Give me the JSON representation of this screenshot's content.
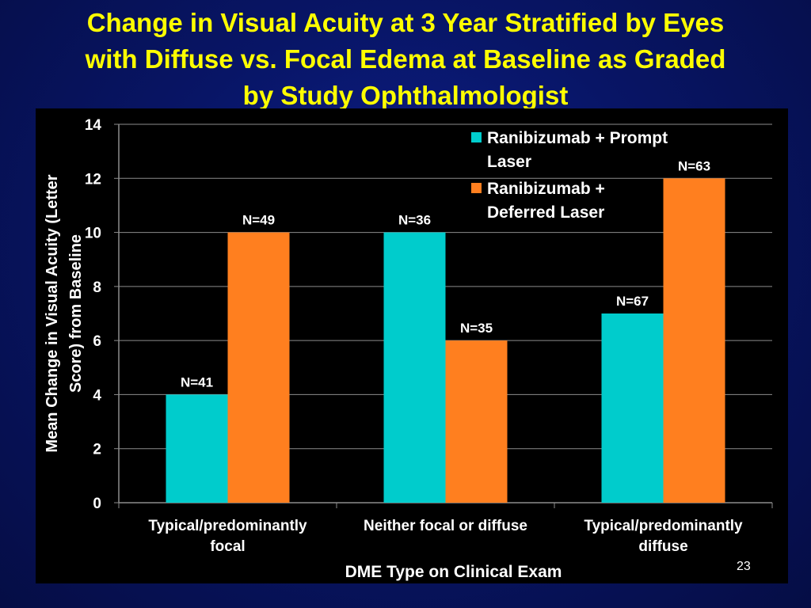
{
  "slide": {
    "title_lines": [
      "Change in Visual Acuity at 3 Year Stratified by Eyes",
      "with Diffuse vs. Focal Edema at Baseline as Graded",
      "by Study Ophthalmologist"
    ],
    "slide_number": "23"
  },
  "colors": {
    "title": "#ffff00",
    "series_prompt": "#00cccc",
    "series_deferred": "#ff7f1f",
    "text": "#ffffff",
    "gridline": "#8c8c8c"
  },
  "chart_data": {
    "type": "bar",
    "title": "",
    "xlabel": "DME Type on Clinical Exam",
    "ylabel_lines": [
      "Mean Change in Visual  Acuity (Letter",
      "Score) from Baseline"
    ],
    "ylim": [
      0,
      14
    ],
    "yticks": [
      0,
      2,
      4,
      6,
      8,
      10,
      12,
      14
    ],
    "grid": true,
    "legend_position": "top-right",
    "categories": [
      [
        "Typical/predominantly",
        "focal"
      ],
      [
        "Neither focal or diffuse"
      ],
      [
        "Typical/predominantly",
        "diffuse"
      ]
    ],
    "series": [
      {
        "name_lines": [
          "Ranibizumab + Prompt",
          "Laser"
        ],
        "color": "#00cccc",
        "values": [
          4,
          10,
          7
        ],
        "labels": [
          "N=41",
          "N=36",
          "N=67"
        ]
      },
      {
        "name_lines": [
          "Ranibizumab +",
          "Deferred Laser"
        ],
        "color": "#ff7f1f",
        "values": [
          10,
          6,
          12
        ],
        "labels": [
          "N=49",
          "N=35",
          "N=63"
        ]
      }
    ]
  }
}
